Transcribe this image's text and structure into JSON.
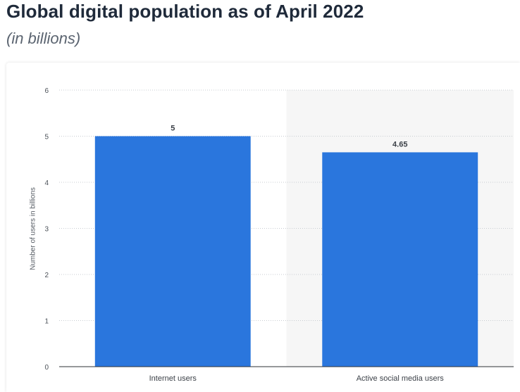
{
  "title": "Global digital population as of April 2022",
  "subtitle": "(in billions)",
  "chart_data": {
    "type": "bar",
    "categories": [
      "Internet users",
      "Active social media users"
    ],
    "values": [
      5,
      4.65
    ],
    "value_labels": [
      "5",
      "4.65"
    ],
    "title": "Global digital population as of April 2022",
    "subtitle": "(in billions)",
    "xlabel": "",
    "ylabel": "Number of users in billions",
    "ylim": [
      0,
      6
    ],
    "yticks": [
      0,
      1,
      2,
      3,
      4,
      5,
      6
    ],
    "grid": true,
    "legend": "none",
    "bar_color": "#2a76dd",
    "highlight_band_color": "#f6f6f6"
  }
}
